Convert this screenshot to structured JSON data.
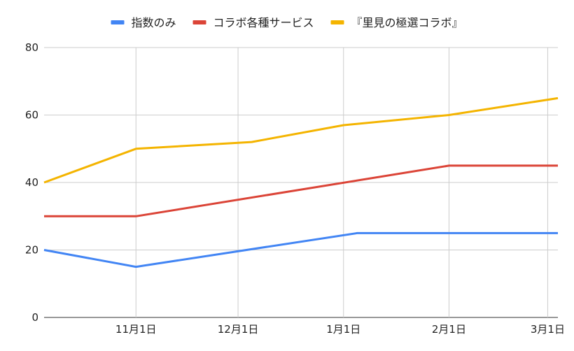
{
  "chart_data": {
    "type": "line",
    "x_ticks": [
      {
        "label": "11月1日",
        "date": "2019-11-01"
      },
      {
        "label": "12月1日",
        "date": "2019-12-01"
      },
      {
        "label": "1月1日",
        "date": "2020-01-01"
      },
      {
        "label": "2月1日",
        "date": "2020-02-01"
      },
      {
        "label": "3月1日",
        "date": "2020-03-01"
      }
    ],
    "xlim": [
      "2019-10-05",
      "2020-03-04"
    ],
    "ylim": [
      0,
      80
    ],
    "y_ticks": [
      0,
      20,
      40,
      60,
      80
    ],
    "grid": true,
    "legend": "top",
    "series": [
      {
        "name": "指数のみ",
        "color": "#4285F4",
        "points": [
          {
            "x": "2019-10-05",
            "y": 20
          },
          {
            "x": "2019-11-01",
            "y": 15
          },
          {
            "x": "2020-01-05",
            "y": 25
          },
          {
            "x": "2020-03-04",
            "y": 25
          }
        ]
      },
      {
        "name": "コラボ各種サービス",
        "color": "#DB4437",
        "points": [
          {
            "x": "2019-10-05",
            "y": 30
          },
          {
            "x": "2019-11-01",
            "y": 30
          },
          {
            "x": "2020-02-01",
            "y": 45
          },
          {
            "x": "2020-03-04",
            "y": 45
          }
        ]
      },
      {
        "name": "『里見の極選コラボ』",
        "color": "#F4B400",
        "points": [
          {
            "x": "2019-10-05",
            "y": 40
          },
          {
            "x": "2019-11-01",
            "y": 50
          },
          {
            "x": "2019-12-05",
            "y": 52
          },
          {
            "x": "2020-01-01",
            "y": 57
          },
          {
            "x": "2020-02-01",
            "y": 60
          },
          {
            "x": "2020-03-04",
            "y": 65
          }
        ]
      }
    ]
  }
}
